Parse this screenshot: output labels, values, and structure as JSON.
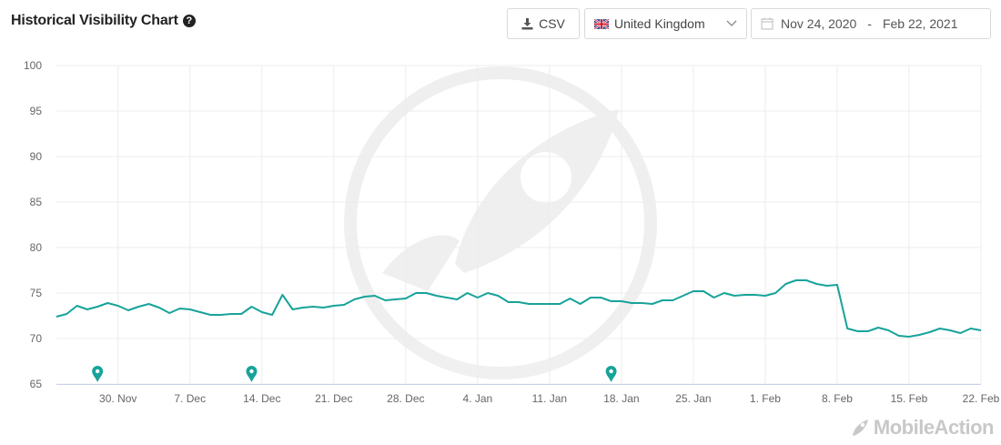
{
  "header": {
    "title": "Historical Visibility Chart",
    "help_icon": "?",
    "csv_label": "CSV",
    "country": "United Kingdom",
    "date_start": "Nov 24, 2020",
    "date_sep": "-",
    "date_end": "Feb 22, 2021"
  },
  "brand": {
    "name": "MobileAction"
  },
  "colors": {
    "line": "#17a39a",
    "marker": "#17a39a",
    "grid": "#ececec"
  },
  "chart_data": {
    "type": "line",
    "title": "Historical Visibility Chart",
    "xlabel": "",
    "ylabel": "",
    "ylim": [
      65,
      100
    ],
    "yticks": [
      65,
      70,
      75,
      80,
      85,
      90,
      95,
      100
    ],
    "x_tick_labels": [
      "30. Nov",
      "7. Dec",
      "14. Dec",
      "21. Dec",
      "28. Dec",
      "4. Jan",
      "11. Jan",
      "18. Jan",
      "25. Jan",
      "1. Feb",
      "8. Feb",
      "15. Feb",
      "22. Feb"
    ],
    "x_start": "2020-11-24",
    "x_end": "2021-02-22",
    "series": [
      {
        "values": [
          72.4,
          72.7,
          73.6,
          73.2,
          73.5,
          73.9,
          73.6,
          73.1,
          73.5,
          73.8,
          73.4,
          72.8,
          73.3,
          73.2,
          72.9,
          72.6,
          72.6,
          72.7,
          72.7,
          73.5,
          72.9,
          72.6,
          74.8,
          73.2,
          73.4,
          73.5,
          73.4,
          73.6,
          73.7,
          74.3,
          74.6,
          74.7,
          74.2,
          74.3,
          74.4,
          75.0,
          75.0,
          74.7,
          74.5,
          74.3,
          75.0,
          74.5,
          75.0,
          74.7,
          74.0,
          74.0,
          73.8,
          73.8,
          73.8,
          73.8,
          74.4,
          73.8,
          74.5,
          74.5,
          74.1,
          74.1,
          73.9,
          73.9,
          73.8,
          74.2,
          74.2,
          74.7,
          75.2,
          75.2,
          74.5,
          75.0,
          74.7,
          74.8,
          74.8,
          74.7,
          75.0,
          76.0,
          76.4,
          76.4,
          76.0,
          75.8,
          75.9,
          71.1,
          70.8,
          70.8,
          71.2,
          70.9,
          70.3,
          70.2,
          70.4,
          70.7,
          71.1,
          70.9,
          70.6,
          71.1,
          70.9
        ]
      }
    ],
    "annotations": [
      "2020-11-28",
      "2020-12-13",
      "2021-01-17"
    ],
    "grid": true,
    "legend": "none"
  }
}
